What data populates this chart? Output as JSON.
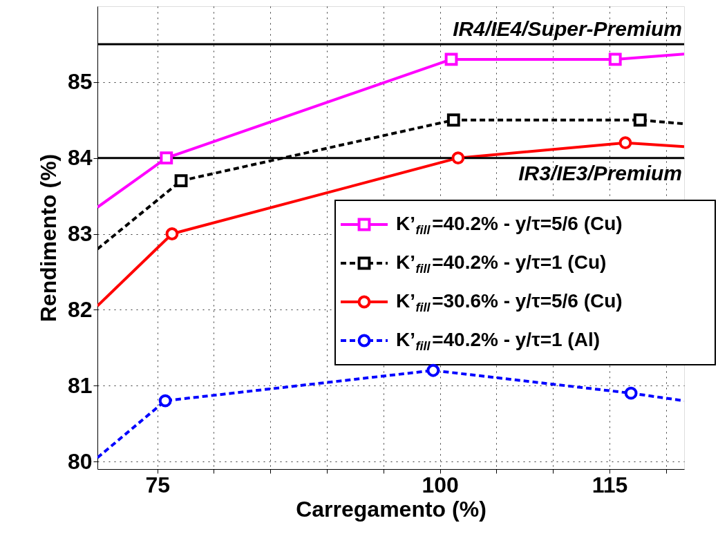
{
  "chart_data": {
    "type": "line",
    "xlabel": "Carregamento (%)",
    "ylabel": "Rendimento (%)",
    "xlim": [
      69.7,
      121.6
    ],
    "ylim": [
      79.9,
      86
    ],
    "xticks": [
      75,
      {
        "value": 80,
        "label": null
      },
      {
        "value": 85,
        "label": null
      },
      {
        "value": 90,
        "label": null
      },
      {
        "value": 95,
        "label": null
      },
      100,
      {
        "value": 105,
        "label": null
      },
      {
        "value": 110,
        "label": null
      },
      115,
      {
        "value": 120,
        "label": null
      }
    ],
    "yticks": [
      80,
      81,
      82,
      83,
      84,
      85
    ],
    "grid": true,
    "legend": "right",
    "ref_lines": [
      {
        "axis": "y",
        "value": 85.5,
        "label": "IR4/IE4/Super-Premium",
        "color": "#000000"
      },
      {
        "axis": "y",
        "value": 84,
        "label": "IR3/IE3/Premium",
        "color": "#000000"
      }
    ],
    "series": [
      {
        "name": "K’$_{fill}$=40.2% - y/τ=5/6  (Cu)",
        "color": "#ff00ff",
        "marker": "square",
        "line_style": "solid",
        "x": [
          69.7,
          75.8,
          101.0,
          115.5,
          121.6
        ],
        "values": [
          83.35,
          84.0,
          85.3,
          85.3,
          85.37
        ]
      },
      {
        "name": "K’$_{fill}$=40.2% - y/τ=1  (Cu)",
        "color": "#000000",
        "marker": "square",
        "line_style": "dashed",
        "x": [
          69.7,
          77.1,
          101.2,
          117.7,
          121.6
        ],
        "values": [
          82.8,
          83.7,
          84.5,
          84.5,
          84.45
        ]
      },
      {
        "name": "K’$_{fill}$=30.6% - y/τ=5/6  (Cu)",
        "color": "#ff0000",
        "marker": "circle",
        "line_style": "solid",
        "x": [
          69.7,
          76.3,
          101.6,
          116.4,
          121.6
        ],
        "values": [
          82.05,
          83.0,
          84.0,
          84.2,
          84.15
        ]
      },
      {
        "name": "K’$_{fill}$=40.2% - y/τ=1  (Al)",
        "color": "#0000ff",
        "marker": "circle",
        "line_style": "dashed",
        "x": [
          69.7,
          75.7,
          99.4,
          116.9,
          121.6
        ],
        "values": [
          80.05,
          80.8,
          81.2,
          80.9,
          80.8
        ]
      }
    ]
  }
}
